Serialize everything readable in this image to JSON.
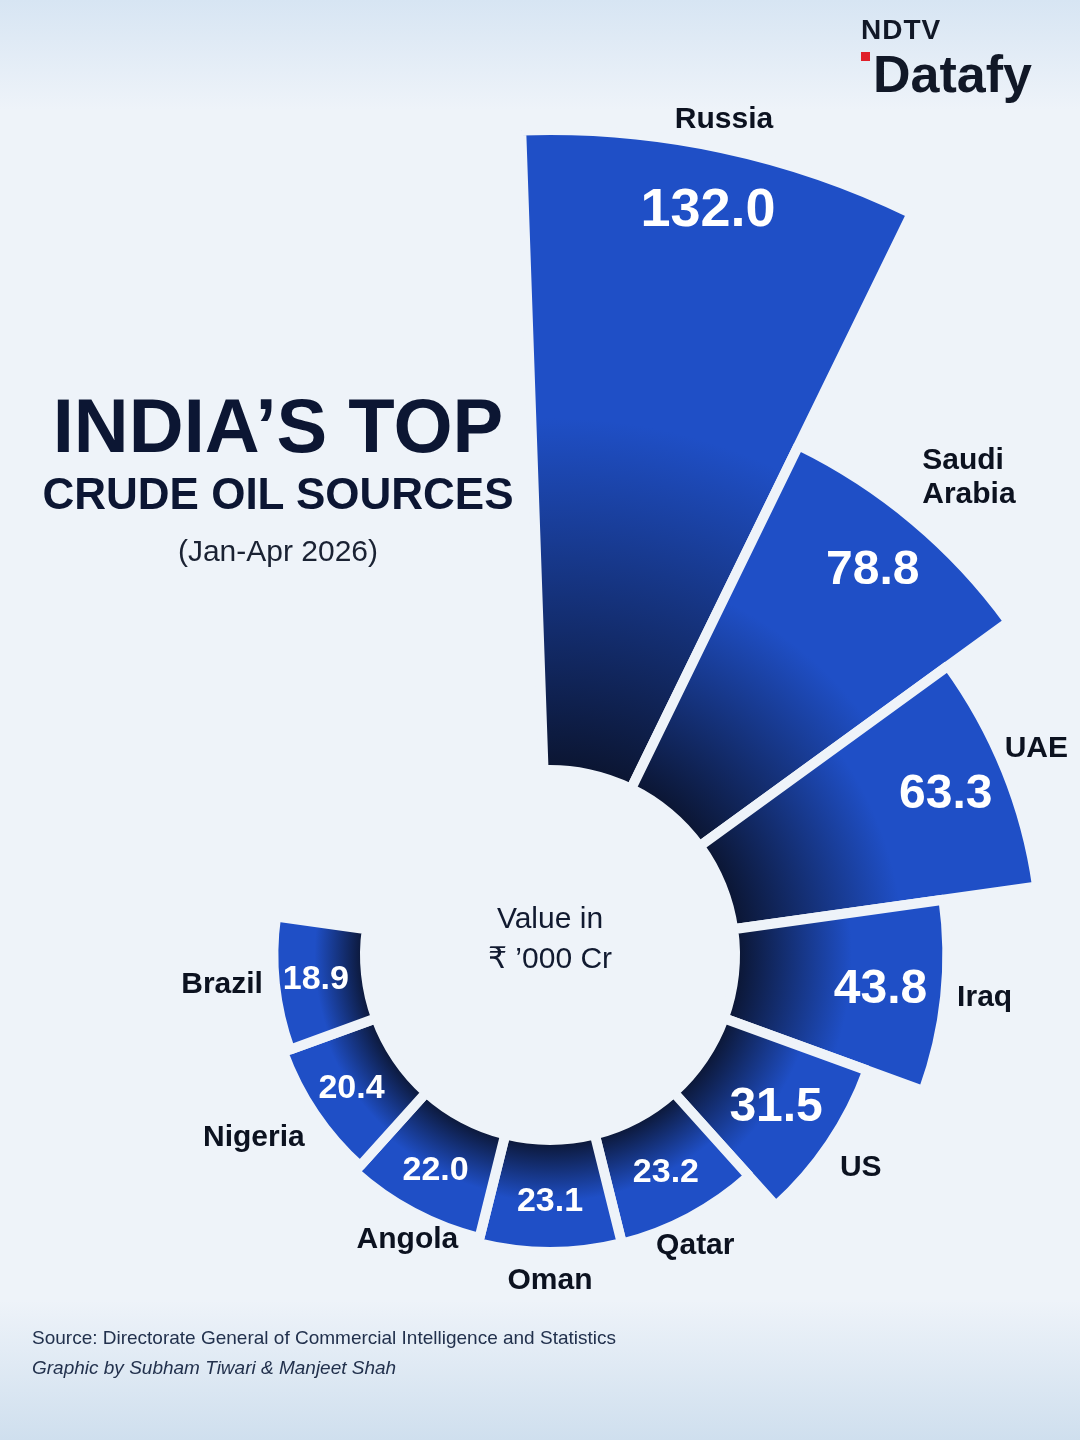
{
  "chart_data": {
    "type": "polar",
    "title": [
      "INDIA’S TOP",
      "CRUDE OIL SOURCES"
    ],
    "subtitle": "(Jan-Apr 2026)",
    "ylabel": [
      "Value in",
      "₹ ’000 Cr"
    ],
    "categories": [
      "Russia",
      "Saudi Arabia",
      "UAE",
      "Iraq",
      "US",
      "Qatar",
      "Oman",
      "Angola",
      "Nigeria",
      "Brazil"
    ],
    "values": [
      132.0,
      78.8,
      63.3,
      43.8,
      31.5,
      23.2,
      23.1,
      22.0,
      20.4,
      18.9
    ],
    "value_labels": [
      "132.0",
      "78.8",
      "63.3",
      "43.8",
      "31.5",
      "23.2",
      "23.1",
      "22.0",
      "20.4",
      "18.9"
    ],
    "color": "#1f4fc6",
    "ylim": [
      0,
      132
    ],
    "grid": false,
    "tick_labels": false,
    "data_labels": true
  },
  "source": "Source: Directorate General of Commercial Intelligence and Statistics",
  "credit": "Graphic by Subham Tiwari & Manjeet Shah",
  "brand": [
    "NDTV",
    "Datafy"
  ]
}
